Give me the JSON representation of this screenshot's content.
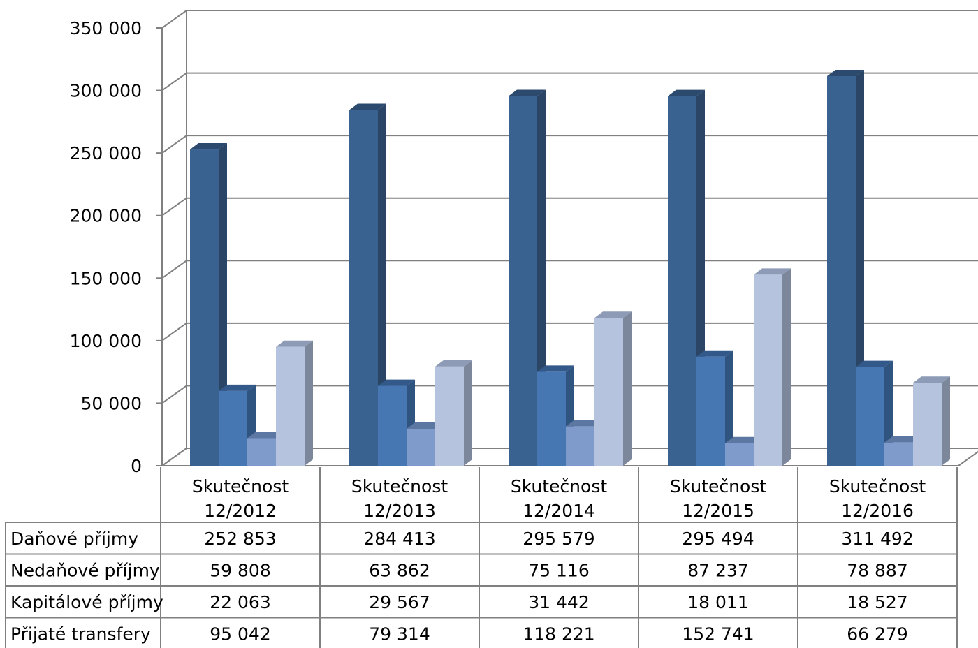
{
  "chart_data": {
    "type": "bar",
    "categories": [
      [
        "Skutečnost",
        "12/2012"
      ],
      [
        "Skutečnost",
        "12/2013"
      ],
      [
        "Skutečnost",
        "12/2014"
      ],
      [
        "Skutečnost",
        "12/2015"
      ],
      [
        "Skutečnost",
        "12/2016"
      ]
    ],
    "series": [
      {
        "name": "Daňové příjmy",
        "values": [
          252853,
          284413,
          295579,
          295494,
          311492
        ],
        "display": [
          "252 853",
          "284 413",
          "295 579",
          "295 494",
          "311 492"
        ]
      },
      {
        "name": "Nedaňové příjmy",
        "values": [
          59808,
          63862,
          75116,
          87237,
          78887
        ],
        "display": [
          "59 808",
          "63 862",
          "75 116",
          "87 237",
          "78 887"
        ]
      },
      {
        "name": "Kapitálové příjmy",
        "values": [
          22063,
          29567,
          31442,
          18011,
          18527
        ],
        "display": [
          "22 063",
          "29 567",
          "31 442",
          "18 011",
          "18 527"
        ]
      },
      {
        "name": "Přijaté transfery",
        "values": [
          95042,
          79314,
          118221,
          152741,
          66279
        ],
        "display": [
          "95 042",
          "79 314",
          "118 221",
          "152 741",
          "66 279"
        ]
      }
    ],
    "ylim": [
      0,
      350000
    ],
    "yticks": [
      0,
      50000,
      100000,
      150000,
      200000,
      250000,
      300000,
      350000
    ],
    "ytick_labels": [
      "0",
      "50 000",
      "100 000",
      "150 000",
      "200 000",
      "250 000",
      "300 000",
      "350 000"
    ],
    "grid": true,
    "three_d": true,
    "legend": "data-table-below",
    "colors": {
      "series": [
        "#3A6290",
        "#4677B2",
        "#7E9BCB",
        "#B6C3DE"
      ],
      "series_side": [
        "#2A4566",
        "#2F5480",
        "#556C94",
        "#7D879C"
      ],
      "series_top": [
        "#2C4A6E",
        "#33598A",
        "#5D77A3",
        "#8E9BB6"
      ],
      "grid": "#808080",
      "table": "#808080"
    }
  }
}
